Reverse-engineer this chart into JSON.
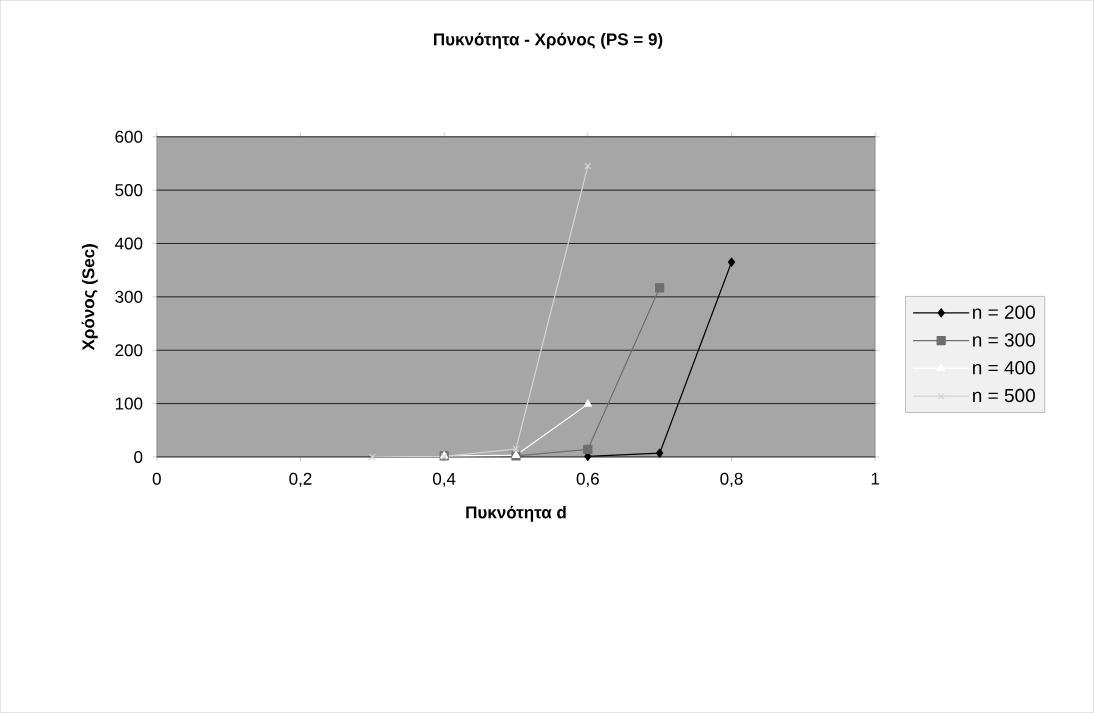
{
  "chart_data": {
    "type": "line",
    "title": "Πυκνότητα  - Χρόνος (PS = 9)",
    "xlabel": "Πυκνότητα d",
    "ylabel": "Χρόνος (Sec)",
    "series": [
      {
        "name": "n = 200",
        "color": "#000000",
        "marker": "diamond",
        "x": [
          0.6,
          0.7,
          0.8
        ],
        "values": [
          1,
          7,
          365
        ]
      },
      {
        "name": "n = 300",
        "color": "#6e6e6e",
        "marker": "square",
        "x": [
          0.4,
          0.5,
          0.6,
          0.7
        ],
        "values": [
          2,
          2,
          14,
          317
        ]
      },
      {
        "name": "n = 400",
        "color": "#ffffff",
        "marker": "triangle",
        "x": [
          0.4,
          0.5,
          0.6
        ],
        "values": [
          2,
          3,
          99
        ]
      },
      {
        "name": "n = 500",
        "color": "#d4d4d4",
        "marker": "cross",
        "x": [
          0.3,
          0.4,
          0.5,
          0.6
        ],
        "values": [
          0,
          1,
          15,
          545
        ]
      }
    ],
    "xlim": [
      0,
      1
    ],
    "ylim": [
      0,
      600
    ],
    "xticks": [
      0,
      {
        "value": 0.2,
        "label": "0,2"
      },
      {
        "value": 0.4,
        "label": "0,4"
      },
      {
        "value": 0.6,
        "label": "0,6"
      },
      {
        "value": 0.8,
        "label": "0,8"
      },
      1
    ],
    "yticks": [
      0,
      100,
      200,
      300,
      400,
      500,
      600
    ],
    "grid": "y",
    "legend": "right"
  }
}
